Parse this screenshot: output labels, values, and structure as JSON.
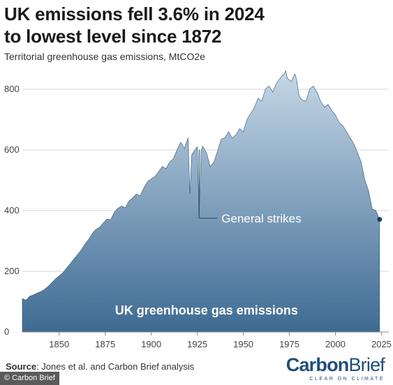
{
  "chart_data": {
    "type": "area",
    "title": "UK emissions fell 3.6% in 2024\nto lowest level since 1872",
    "subtitle": "Territorial greenhouse gas emissions, MtCO2e",
    "area_label": "UK greenhouse gas emissions",
    "annotation": {
      "text": "General strikes",
      "x": 1926,
      "y": 375
    },
    "highlight_point": {
      "x": 2024,
      "y": 371
    },
    "xlim": [
      1830,
      2029
    ],
    "ylim": [
      0,
      880
    ],
    "xticks": [
      1850,
      1875,
      1900,
      1925,
      1950,
      1975,
      2000,
      2025
    ],
    "yticks": [
      0,
      200,
      400,
      600,
      800
    ],
    "gradient": [
      "#c5d7e6",
      "#3e6b93"
    ],
    "x": [
      1830,
      1832,
      1834,
      1836,
      1838,
      1840,
      1842,
      1844,
      1846,
      1848,
      1850,
      1852,
      1854,
      1856,
      1858,
      1860,
      1862,
      1864,
      1866,
      1868,
      1870,
      1872,
      1874,
      1876,
      1878,
      1880,
      1882,
      1884,
      1886,
      1888,
      1890,
      1892,
      1894,
      1896,
      1898,
      1900,
      1902,
      1904,
      1906,
      1908,
      1910,
      1912,
      1914,
      1916,
      1918,
      1920,
      1921,
      1922,
      1924,
      1925,
      1926,
      1927,
      1928,
      1930,
      1932,
      1934,
      1936,
      1938,
      1940,
      1942,
      1944,
      1946,
      1948,
      1950,
      1952,
      1954,
      1956,
      1958,
      1960,
      1962,
      1964,
      1966,
      1968,
      1970,
      1971,
      1972,
      1973,
      1974,
      1976,
      1978,
      1979,
      1980,
      1981,
      1982,
      1984,
      1986,
      1988,
      1990,
      1992,
      1994,
      1996,
      1998,
      2000,
      2002,
      2004,
      2006,
      2008,
      2010,
      2012,
      2014,
      2016,
      2018,
      2020,
      2022,
      2024
    ],
    "y": [
      110,
      105,
      118,
      122,
      128,
      133,
      140,
      150,
      162,
      175,
      185,
      195,
      210,
      225,
      240,
      255,
      270,
      290,
      305,
      325,
      338,
      345,
      360,
      372,
      370,
      395,
      408,
      415,
      410,
      432,
      442,
      455,
      448,
      475,
      495,
      505,
      512,
      528,
      545,
      538,
      560,
      570,
      600,
      625,
      605,
      640,
      455,
      585,
      602,
      610,
      375,
      595,
      612,
      590,
      545,
      560,
      595,
      635,
      640,
      660,
      638,
      650,
      670,
      660,
      700,
      720,
      740,
      770,
      760,
      800,
      810,
      790,
      820,
      835,
      845,
      848,
      860,
      835,
      825,
      850,
      830,
      785,
      770,
      765,
      760,
      800,
      810,
      790,
      760,
      740,
      750,
      730,
      715,
      690,
      680,
      660,
      640,
      620,
      590,
      560,
      500,
      465,
      405,
      400,
      371
    ]
  },
  "footer": {
    "source_label": "Source",
    "source_text": ": Jones et al. and Carbon Brief analysis",
    "copyright": "© Carbon Brief",
    "brand_carbon": "Carbon",
    "brand_brief": "Brief",
    "brand_tagline": "CLEAR ON CLIMATE"
  }
}
